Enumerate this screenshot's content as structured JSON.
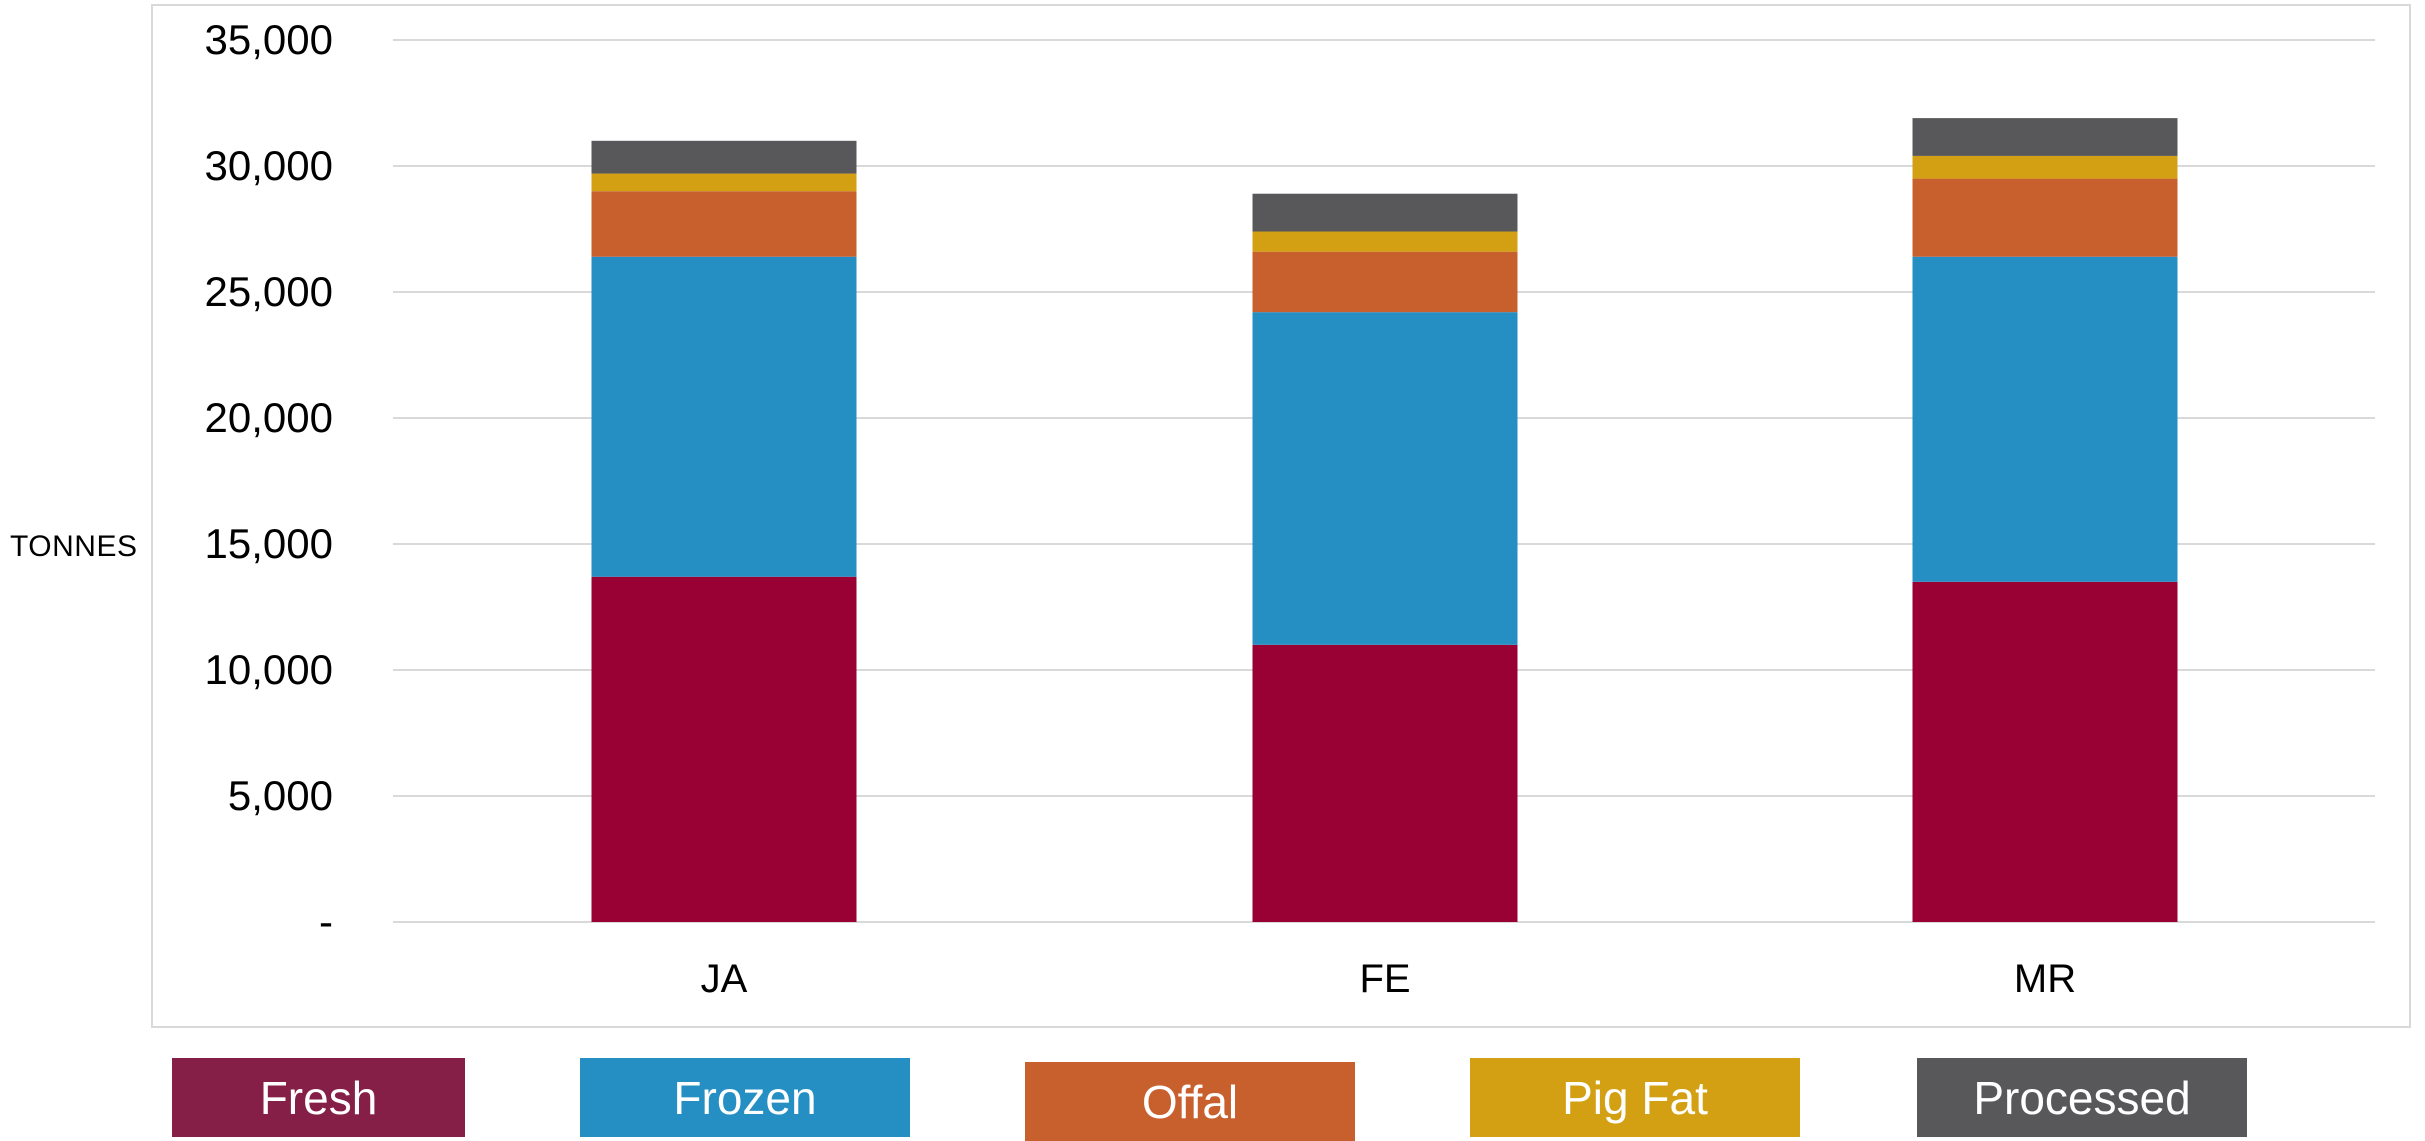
{
  "chart_data": {
    "type": "bar",
    "stacked": true,
    "ylabel": "TONNES",
    "categories": [
      "JA",
      "FE",
      "MR"
    ],
    "ylim": [
      0,
      35000
    ],
    "yticks": [
      0,
      5000,
      10000,
      15000,
      20000,
      25000,
      30000,
      35000
    ],
    "ytick_labels": [
      "-",
      "5,000",
      "10,000",
      "15,000",
      "20,000",
      "25,000",
      "30,000",
      "35,000"
    ],
    "grid": true,
    "legend_position": "bottom",
    "series": [
      {
        "name": "Fresh",
        "color": "#990033",
        "values": [
          13700,
          11000,
          13500
        ]
      },
      {
        "name": "Frozen",
        "color": "#258fc4",
        "values": [
          12700,
          13200,
          12900
        ]
      },
      {
        "name": "Offal",
        "color": "#c8602e",
        "values": [
          2600,
          2400,
          3100
        ]
      },
      {
        "name": "Pig Fat",
        "color": "#d4a013",
        "values": [
          700,
          800,
          900
        ]
      },
      {
        "name": "Processed",
        "color": "#58585a",
        "values": [
          1300,
          1500,
          1500
        ]
      }
    ]
  },
  "legend": {
    "items": [
      {
        "label": "Fresh",
        "color": "#861f47"
      },
      {
        "label": "Frozen",
        "color": "#258fc4"
      },
      {
        "label": "Offal",
        "color": "#c8602e"
      },
      {
        "label": "Pig Fat",
        "color": "#d4a013"
      },
      {
        "label": "Processed",
        "color": "#58585a"
      }
    ]
  }
}
